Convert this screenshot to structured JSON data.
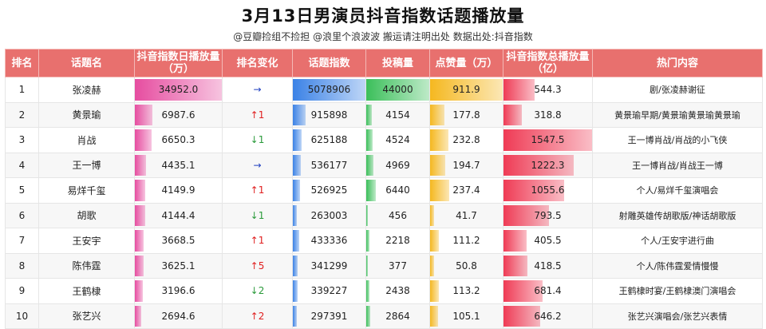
{
  "title": "3月13日男演员抖音指数话题播放量",
  "subtitle": "@豆瓣捡组不捡担 @浪里个浪波波 搬运请注明出处 数据出处:抖音指数",
  "headers": {
    "rank": "排名",
    "topic": "话题名",
    "daily_play": "抖音指数日播放量（万）",
    "rank_change": "排名变化",
    "topic_index": "话题指数",
    "posts": "投稿量",
    "likes": "点赞量（万）",
    "total_play": "抖音指数总播放量（亿）",
    "hot": "热门内容"
  },
  "colors": {
    "header_bg": "#e8706e",
    "daily_bar": "#e64da0",
    "index_bar": "#3b82e6",
    "posts_bar": "#3bbf5a",
    "likes_bar": "#f5b820",
    "total_bar": "#ef3b55"
  },
  "rows": [
    {
      "rank": "1",
      "name": "张凌赫",
      "daily": "34952.0",
      "daily_v": 34952.0,
      "change": "→",
      "dir": "same",
      "index": "5078906",
      "index_v": 5078906,
      "posts": "44000",
      "posts_v": 44000,
      "likes": "911.9",
      "likes_v": 911.9,
      "total": "544.3",
      "total_v": 544.3,
      "hot": "剧/张凌赫谢征"
    },
    {
      "rank": "2",
      "name": "黄景瑜",
      "daily": "6987.6",
      "daily_v": 6987.6,
      "change": "↑1",
      "dir": "up",
      "index": "915898",
      "index_v": 915898,
      "posts": "4154",
      "posts_v": 4154,
      "likes": "177.8",
      "likes_v": 177.8,
      "total": "318.8",
      "total_v": 318.8,
      "hot": "黄景瑜早期/黄景瑜黄景瑜黄景瑜"
    },
    {
      "rank": "3",
      "name": "肖战",
      "daily": "6650.3",
      "daily_v": 6650.3,
      "change": "↓1",
      "dir": "down",
      "index": "625188",
      "index_v": 625188,
      "posts": "4524",
      "posts_v": 4524,
      "likes": "232.8",
      "likes_v": 232.8,
      "total": "1547.5",
      "total_v": 1547.5,
      "hot": "王一博肖战/肖战的小飞侠"
    },
    {
      "rank": "4",
      "name": "王一博",
      "daily": "4435.1",
      "daily_v": 4435.1,
      "change": "→",
      "dir": "same",
      "index": "536177",
      "index_v": 536177,
      "posts": "4969",
      "posts_v": 4969,
      "likes": "194.7",
      "likes_v": 194.7,
      "total": "1222.3",
      "total_v": 1222.3,
      "hot": "王一博肖战/肖战王一博"
    },
    {
      "rank": "5",
      "name": "易烊千玺",
      "daily": "4149.9",
      "daily_v": 4149.9,
      "change": "↑1",
      "dir": "up",
      "index": "526925",
      "index_v": 526925,
      "posts": "6440",
      "posts_v": 6440,
      "likes": "237.4",
      "likes_v": 237.4,
      "total": "1055.6",
      "total_v": 1055.6,
      "hot": "个人/易烊千玺演唱会"
    },
    {
      "rank": "6",
      "name": "胡歌",
      "daily": "4144.4",
      "daily_v": 4144.4,
      "change": "↓1",
      "dir": "down",
      "index": "263003",
      "index_v": 263003,
      "posts": "456",
      "posts_v": 456,
      "likes": "41.7",
      "likes_v": 41.7,
      "total": "793.5",
      "total_v": 793.5,
      "hot": "射雕英雄传胡歌版/神话胡歌版"
    },
    {
      "rank": "7",
      "name": "王安宇",
      "daily": "3668.5",
      "daily_v": 3668.5,
      "change": "↑1",
      "dir": "up",
      "index": "433336",
      "index_v": 433336,
      "posts": "2218",
      "posts_v": 2218,
      "likes": "111.2",
      "likes_v": 111.2,
      "total": "405.5",
      "total_v": 405.5,
      "hot": "个人/王安宇进行曲"
    },
    {
      "rank": "8",
      "name": "陈伟霆",
      "daily": "3625.1",
      "daily_v": 3625.1,
      "change": "↑5",
      "dir": "up",
      "index": "341299",
      "index_v": 341299,
      "posts": "377",
      "posts_v": 377,
      "likes": "50.8",
      "likes_v": 50.8,
      "total": "418.5",
      "total_v": 418.5,
      "hot": "个人/陈伟霆爱情慢慢"
    },
    {
      "rank": "9",
      "name": "王鹤棣",
      "daily": "3196.6",
      "daily_v": 3196.6,
      "change": "↓2",
      "dir": "down",
      "index": "339227",
      "index_v": 339227,
      "posts": "2438",
      "posts_v": 2438,
      "likes": "113.2",
      "likes_v": 113.2,
      "total": "681.4",
      "total_v": 681.4,
      "hot": "王鹤棣时宴/王鹤棣澳门演唱会"
    },
    {
      "rank": "10",
      "name": "张艺兴",
      "daily": "2694.6",
      "daily_v": 2694.6,
      "change": "↑2",
      "dir": "up",
      "index": "297391",
      "index_v": 297391,
      "posts": "2864",
      "posts_v": 2864,
      "likes": "105.1",
      "likes_v": 105.1,
      "total": "646.2",
      "total_v": 646.2,
      "hot": "张艺兴演唱会/张艺兴表情"
    }
  ]
}
